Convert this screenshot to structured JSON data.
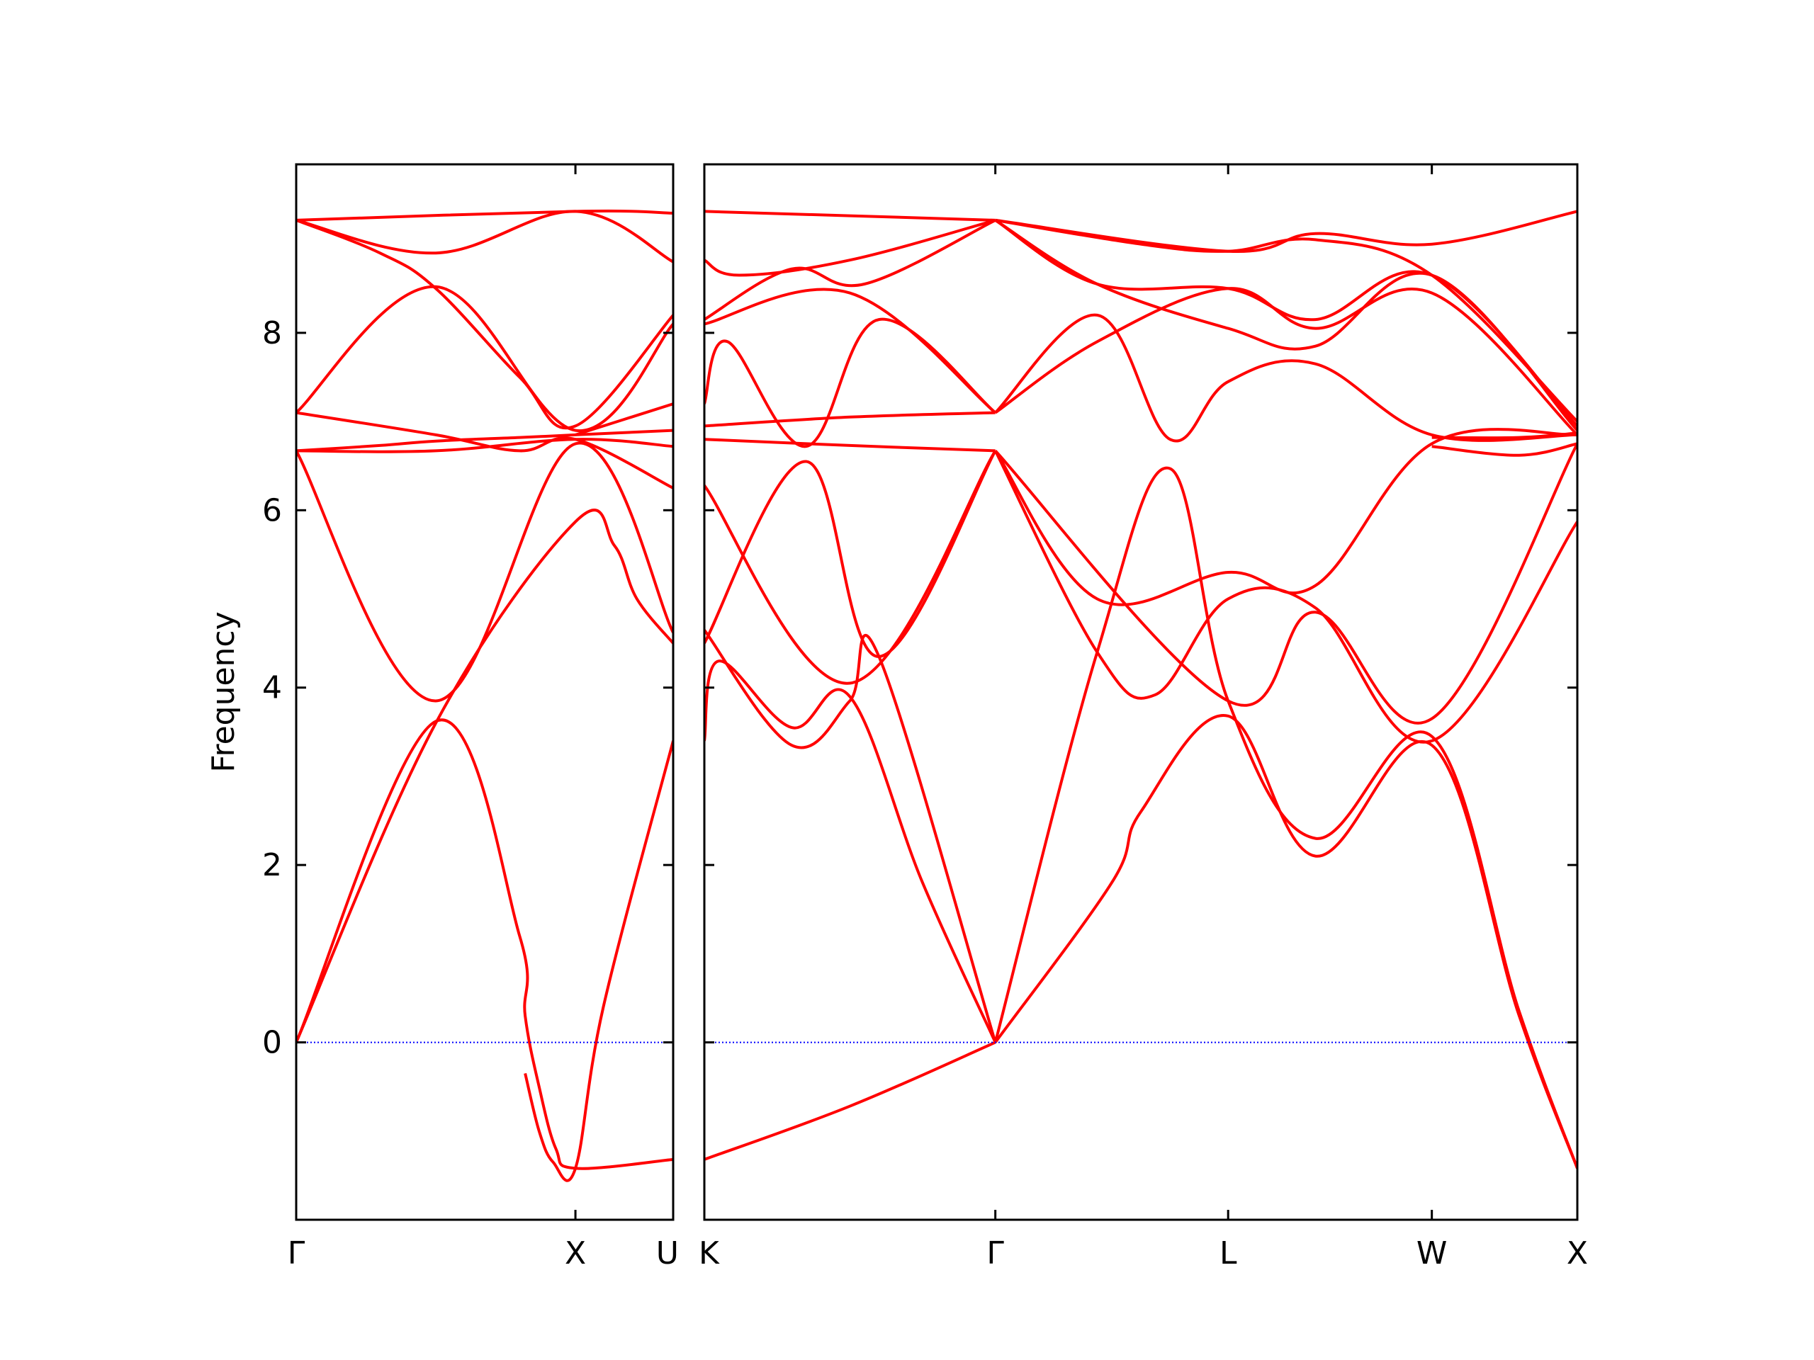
{
  "chart_data": {
    "type": "line",
    "ylabel": "Frequency",
    "ylim": [
      -2.0,
      9.9
    ],
    "yticks": [
      0,
      2,
      4,
      6,
      8
    ],
    "grid": false,
    "colors": {
      "bands": "#ff0000",
      "zero_line": "#0000ff",
      "axes": "#000000"
    },
    "panels": [
      {
        "name": "left",
        "k_range": [
          0,
          1.35
        ],
        "labels": [
          {
            "k": 0,
            "text": "Γ"
          },
          {
            "k": 1.0,
            "text": "X"
          },
          {
            "k": 1.35,
            "text": "U"
          }
        ],
        "bands": [
          {
            "name": "b1",
            "k": [
              0,
              0.5,
              0.8,
              0.82,
              0.87,
              0.93,
              1.0,
              1.35
            ],
            "y": [
              0,
              3.62,
              1.2,
              0.3,
              -0.5,
              -1.2,
              -1.42,
              -1.32
            ]
          },
          {
            "name": "b2",
            "k": [
              0,
              0.5,
              1.0,
              1.14,
              1.22,
              1.35
            ],
            "y": [
              0,
              3.6,
              5.87,
              5.6,
              5.0,
              4.5
            ]
          },
          {
            "name": "b3",
            "k": [
              0,
              0.5,
              1.0,
              1.35
            ],
            "y": [
              6.67,
              3.85,
              6.75,
              4.62
            ]
          },
          {
            "name": "b4",
            "k": [
              0,
              0.3,
              0.5,
              0.8,
              1.0,
              1.35
            ],
            "y": [
              6.67,
              6.73,
              6.78,
              6.82,
              6.85,
              6.9
            ]
          },
          {
            "name": "b5",
            "k": [
              0,
              0.5,
              0.8,
              1.0,
              1.35
            ],
            "y": [
              7.1,
              6.85,
              6.67,
              6.8,
              6.25
            ]
          },
          {
            "name": "b6",
            "k": [
              0,
              0.5,
              1.0,
              1.35
            ],
            "y": [
              7.1,
              8.52,
              6.9,
              8.1
            ]
          },
          {
            "name": "b7",
            "k": [
              0,
              0.3,
              0.5,
              0.8,
              1.0,
              1.35
            ],
            "y": [
              9.27,
              8.9,
              8.5,
              7.5,
              6.95,
              8.2
            ]
          },
          {
            "name": "b8",
            "k": [
              0,
              0.5,
              1.0,
              1.35
            ],
            "y": [
              9.27,
              8.9,
              9.37,
              8.8
            ]
          },
          {
            "name": "b9",
            "k": [
              0,
              0.5,
              1.0,
              1.35
            ],
            "y": [
              6.67,
              6.67,
              6.8,
              6.72
            ]
          },
          {
            "name": "b10",
            "k": [
              0,
              1.0,
              1.35
            ],
            "y": [
              9.27,
              9.37,
              9.35
            ]
          },
          {
            "name": "b11",
            "k": [
              0.82,
              0.87,
              0.92,
              1.0,
              1.1,
              1.35
            ],
            "y": [
              -0.35,
              -1.0,
              -1.35,
              -1.42,
              0.4,
              3.4
            ]
          },
          {
            "name": "b12",
            "k": [
              1.0,
              1.35
            ],
            "y": [
              6.85,
              7.2
            ]
          }
        ]
      },
      {
        "name": "right",
        "k_range": [
          0,
          3.0
        ],
        "labels": [
          {
            "k": 0,
            "text": "K"
          },
          {
            "k": 1.0,
            "text": "Γ"
          },
          {
            "k": 1.8,
            "text": "L"
          },
          {
            "k": 2.5,
            "text": "W"
          },
          {
            "k": 3.0,
            "text": "X"
          }
        ],
        "bands": [
          {
            "name": "r1",
            "k": [
              0,
              0.5,
              1.0
            ],
            "y": [
              -1.32,
              -0.72,
              0
            ]
          },
          {
            "name": "r2",
            "k": [
              0,
              0.05,
              0.3,
              0.5,
              0.75,
              1.0
            ],
            "y": [
              3.4,
              4.3,
              3.55,
              3.9,
              1.8,
              0
            ]
          },
          {
            "name": "r3",
            "k": [
              0,
              0.3,
              0.5,
              0.6,
              1.0
            ],
            "y": [
              4.65,
              3.35,
              3.85,
              4.35,
              0
            ]
          },
          {
            "name": "r4",
            "k": [
              0,
              0.35,
              0.6,
              1.0
            ],
            "y": [
              4.5,
              6.55,
              4.35,
              6.67
            ]
          },
          {
            "name": "r5",
            "k": [
              0,
              0.5,
              1.0
            ],
            "y": [
              6.28,
              4.05,
              6.67
            ]
          },
          {
            "name": "r6",
            "k": [
              0,
              0.5,
              1.0
            ],
            "y": [
              6.8,
              6.73,
              6.67
            ]
          },
          {
            "name": "r7",
            "k": [
              0,
              0.5,
              1.0
            ],
            "y": [
              6.95,
              7.05,
              7.1
            ]
          },
          {
            "name": "r8",
            "k": [
              0,
              0.08,
              0.35,
              0.6,
              1.0
            ],
            "y": [
              7.2,
              7.9,
              6.72,
              8.15,
              7.1
            ]
          },
          {
            "name": "r9",
            "k": [
              0,
              0.5,
              1.0
            ],
            "y": [
              8.1,
              8.45,
              7.1
            ]
          },
          {
            "name": "r10",
            "k": [
              0,
              0.3,
              0.55,
              1.0
            ],
            "y": [
              8.15,
              8.72,
              8.55,
              9.27
            ]
          },
          {
            "name": "r11",
            "k": [
              0,
              0.12,
              0.5,
              1.0
            ],
            "y": [
              8.82,
              8.65,
              8.82,
              9.27
            ]
          },
          {
            "name": "r12",
            "k": [
              0,
              1.0
            ],
            "y": [
              9.37,
              9.27
            ]
          },
          {
            "name": "r13",
            "k": [
              1.0,
              1.35,
              1.6,
              1.8,
              2.1,
              2.5,
              2.8,
              3.0
            ],
            "y": [
              0,
              4.4,
              6.47,
              3.85,
              2.3,
              3.45,
              0.35,
              -1.42
            ]
          },
          {
            "name": "r14",
            "k": [
              1.0,
              1.4,
              1.5,
              1.8,
              2.1,
              2.5,
              2.8,
              3.0
            ],
            "y": [
              0,
              1.8,
              2.6,
              3.68,
              2.1,
              3.35,
              0.3,
              -1.42
            ]
          },
          {
            "name": "r15",
            "k": [
              1.0,
              1.35,
              1.55,
              1.8,
              2.1,
              2.5,
              3.0
            ],
            "y": [
              6.67,
              4.4,
              3.92,
              5.0,
              4.9,
              3.4,
              5.87
            ]
          },
          {
            "name": "r16",
            "k": [
              1.0,
              1.8,
              2.1,
              2.5,
              3.0
            ],
            "y": [
              6.67,
              3.85,
              4.85,
              3.65,
              6.75
            ]
          },
          {
            "name": "r17",
            "k": [
              1.0,
              1.35,
              1.8,
              2.1,
              2.5,
              3.0
            ],
            "y": [
              6.67,
              5.0,
              5.3,
              5.15,
              6.75,
              6.85
            ]
          },
          {
            "name": "r18",
            "k": [
              1.0,
              1.35,
              1.6,
              1.8,
              2.1,
              2.5,
              3.0
            ],
            "y": [
              7.1,
              8.2,
              6.8,
              7.45,
              7.65,
              6.85,
              6.85
            ]
          },
          {
            "name": "r19",
            "k": [
              1.0,
              1.35,
              1.8,
              2.1,
              2.5,
              3.0
            ],
            "y": [
              7.1,
              7.9,
              8.5,
              8.05,
              8.45,
              6.85
            ]
          },
          {
            "name": "r20",
            "k": [
              1.0,
              1.35,
              1.8,
              2.1,
              2.5,
              3.0
            ],
            "y": [
              9.27,
              8.55,
              8.05,
              7.85,
              8.65,
              6.9
            ]
          },
          {
            "name": "r21",
            "k": [
              1.0,
              1.35,
              1.8,
              2.1,
              2.5,
              3.0
            ],
            "y": [
              9.27,
              8.55,
              8.5,
              8.15,
              8.65,
              6.95
            ]
          },
          {
            "name": "r22",
            "k": [
              1.0,
              1.5,
              1.8,
              2.1,
              2.5,
              3.0
            ],
            "y": [
              9.27,
              9.0,
              8.92,
              9.05,
              8.65,
              7.0
            ]
          },
          {
            "name": "r23",
            "k": [
              1.0,
              1.8,
              2.1,
              2.5,
              3.0
            ],
            "y": [
              9.27,
              8.92,
              9.12,
              9.0,
              9.37
            ]
          },
          {
            "name": "r24",
            "k": [
              2.5,
              2.8,
              3.0
            ],
            "y": [
              6.72,
              6.62,
              6.75
            ]
          },
          {
            "name": "r25",
            "k": [
              2.5,
              2.8,
              3.0
            ],
            "y": [
              6.82,
              6.82,
              6.87
            ]
          }
        ]
      }
    ]
  }
}
